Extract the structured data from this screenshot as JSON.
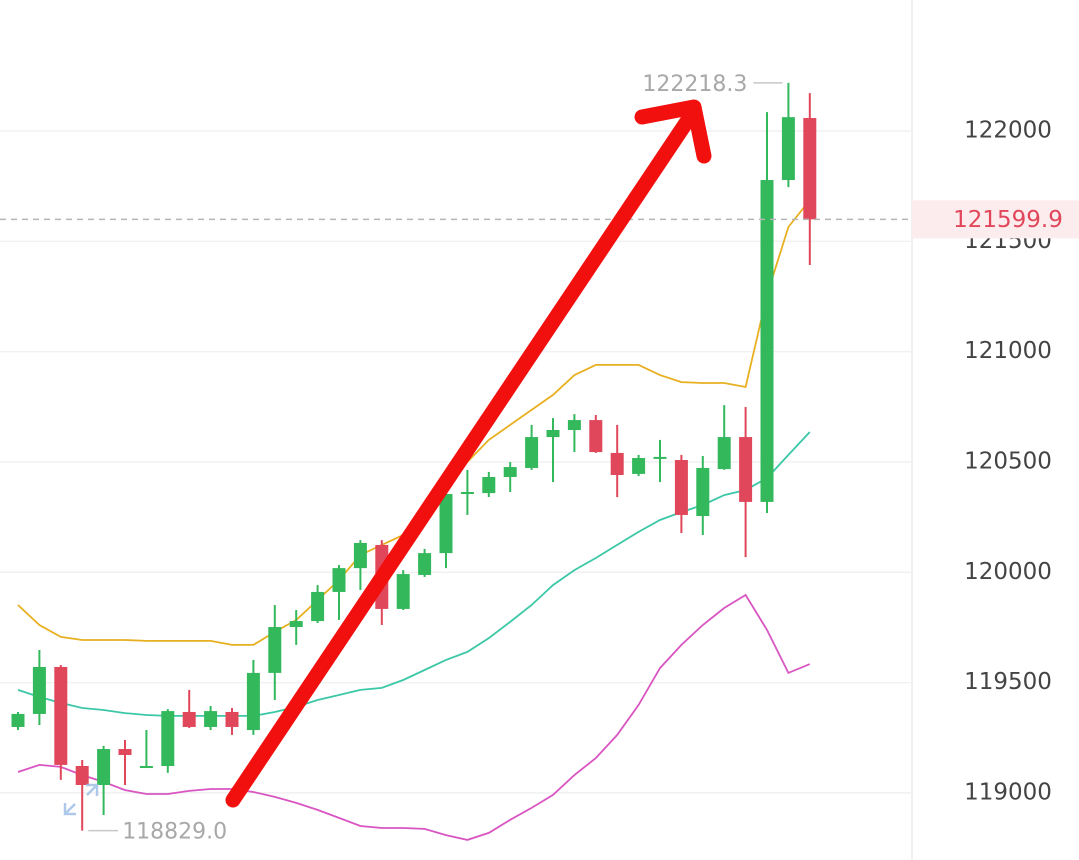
{
  "chart_data": {
    "type": "candlestick",
    "ylim": [
      118696,
      122594
    ],
    "yticks": [
      119000,
      119500,
      120000,
      120500,
      121000,
      121500,
      122000
    ],
    "grid": true,
    "up_color": "#33b85c",
    "down_color": "#e0475b",
    "candles": {
      "open": [
        119299,
        119358,
        119571,
        119122,
        119036,
        119199,
        119122,
        119122,
        119367,
        119299,
        119367,
        119285,
        119544,
        119752,
        119779,
        119911,
        120019,
        120124,
        119834,
        119988,
        120087,
        120355,
        120359,
        120432,
        120473,
        120613,
        120645,
        120690,
        120541,
        120446,
        120523,
        120509,
        120255,
        120468,
        120613,
        120319,
        121778,
        122059
      ],
      "high": [
        119367,
        119648,
        119580,
        119149,
        119213,
        119240,
        119285,
        119380,
        119467,
        119394,
        119385,
        119603,
        119852,
        119829,
        119942,
        120033,
        120146,
        120146,
        120010,
        120106,
        120464,
        120464,
        120455,
        120500,
        120668,
        120699,
        120717,
        120713,
        120668,
        120532,
        120600,
        120532,
        120527,
        120758,
        120749,
        122086,
        122218.3,
        122172
      ],
      "low": [
        119285,
        119308,
        119059,
        118829.0,
        118900,
        119036,
        119113,
        119091,
        119294,
        119285,
        119263,
        119263,
        119421,
        119671,
        119770,
        119784,
        119920,
        119761,
        119829,
        119979,
        120019,
        120260,
        120341,
        120364,
        120464,
        120409,
        120545,
        120541,
        120341,
        120436,
        120409,
        120178,
        120169,
        120464,
        120069,
        120269,
        121746,
        121393
      ],
      "close": [
        119358,
        119571,
        119127,
        119036,
        119199,
        119172,
        119122,
        119371,
        119299,
        119371,
        119299,
        119544,
        119752,
        119779,
        119911,
        120019,
        120133,
        119834,
        119992,
        120087,
        120355,
        120364,
        120432,
        120477,
        120613,
        120645,
        120690,
        120545,
        120441,
        120518,
        120523,
        120260,
        120473,
        120613,
        120319,
        121778,
        122063,
        121599.9
      ]
    },
    "series": [
      {
        "color": "#e8b020",
        "values": [
          119852,
          119761,
          119707,
          119693,
          119693,
          119693,
          119689,
          119689,
          119689,
          119689,
          119671,
          119671,
          119730,
          119784,
          119874,
          119965,
          120078,
          120124,
          120169,
          120282,
          120373,
          120500,
          120600,
          120668,
          120736,
          120804,
          120894,
          120940,
          120940,
          120940,
          120894,
          120862,
          120858,
          120858,
          120840,
          121257,
          121565,
          121687
        ]
      },
      {
        "color": "#3cc8a6",
        "values": [
          119467,
          119435,
          119408,
          119385,
          119376,
          119362,
          119353,
          119349,
          119349,
          119349,
          119349,
          119349,
          119367,
          119390,
          119421,
          119444,
          119467,
          119476,
          119512,
          119557,
          119603,
          119639,
          119702,
          119775,
          119852,
          119942,
          120010,
          120065,
          120124,
          120183,
          120237,
          120273,
          120305,
          120350,
          120373,
          120427,
          120532,
          120636
        ]
      },
      {
        "color": "#d955c2",
        "values": [
          119095,
          119127,
          119118,
          119081,
          119050,
          119013,
          118995,
          118995,
          119009,
          119018,
          119018,
          119004,
          118982,
          118955,
          118923,
          118887,
          118850,
          118841,
          118841,
          118837,
          118809,
          118787,
          118819,
          118878,
          118932,
          118991,
          119081,
          119158,
          119263,
          119399,
          119566,
          119671,
          119761,
          119838,
          119897,
          119739,
          119544,
          119584
        ]
      }
    ],
    "annotations": [
      {
        "value": 122218.3,
        "label": "122218.3"
      },
      {
        "value": 118829.0,
        "label": "118829.0"
      }
    ],
    "last_price": 121599.9,
    "last_price_color": "#e0475b"
  }
}
